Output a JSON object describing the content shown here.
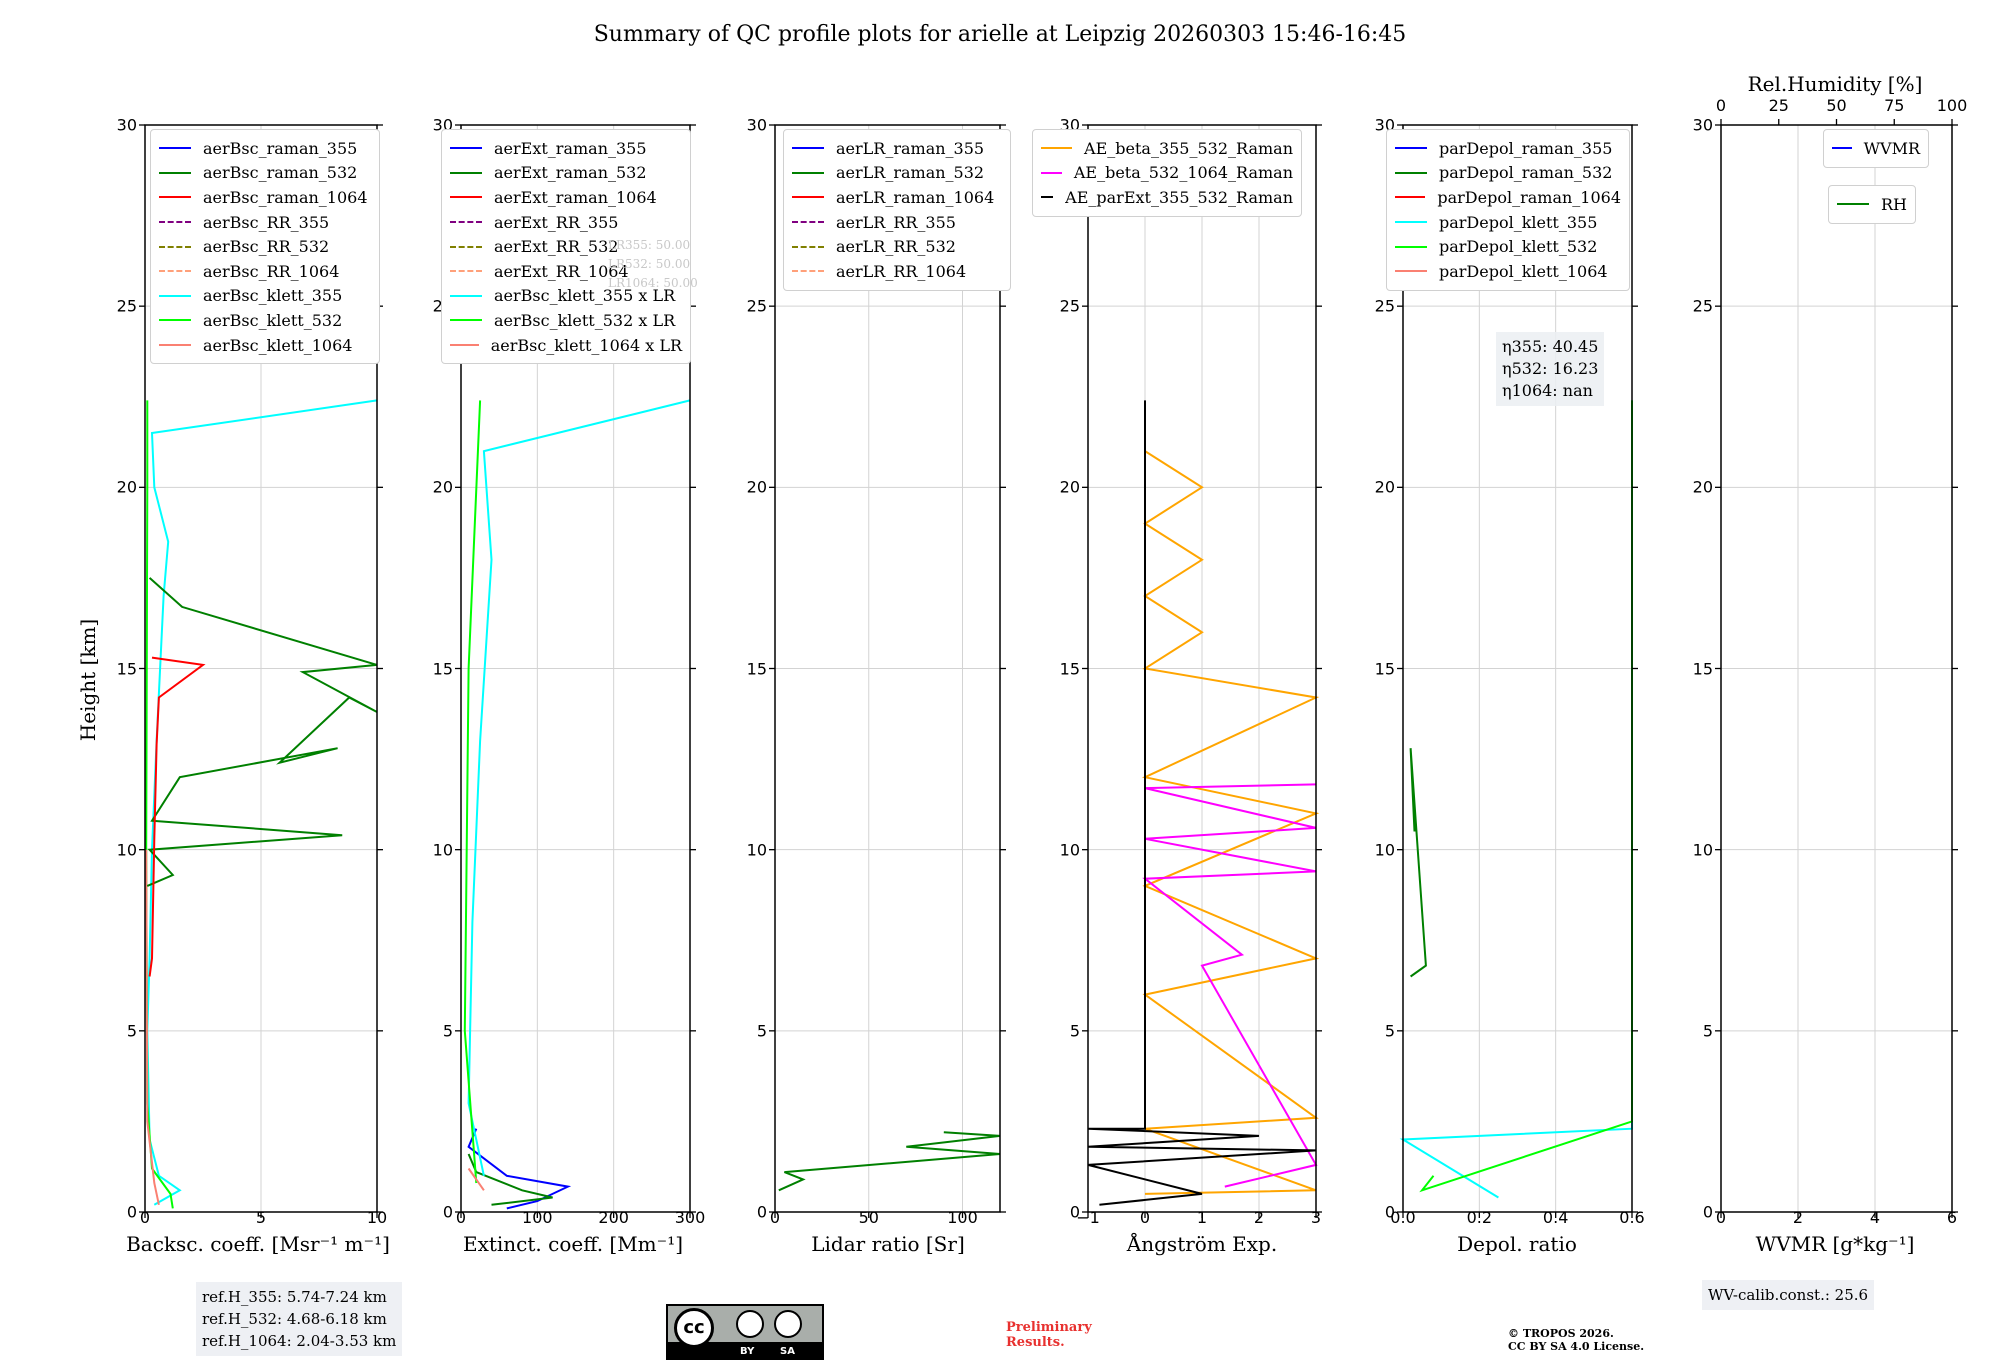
{
  "figure": {
    "title": "Summary of QC profile plots for arielle at Leipzig 20260303 15:46-16:45",
    "ylabel": "Height [km]",
    "y_ticks": [
      "0",
      "5",
      "10",
      "15",
      "20",
      "25",
      "30"
    ]
  },
  "chart_data": [
    {
      "type": "line",
      "panel": "backscatter",
      "xlabel": "Backsc. coeff. [Msr⁻¹ m⁻¹]",
      "xlim": [
        0,
        10
      ],
      "ylim": [
        0,
        30
      ],
      "x_ticks": [
        "0",
        "5",
        "10"
      ],
      "legend": [
        "aerBsc_raman_355",
        "aerBsc_raman_532",
        "aerBsc_raman_1064",
        "aerBsc_RR_355",
        "aerBsc_RR_532",
        "aerBsc_RR_1064",
        "aerBsc_klett_355",
        "aerBsc_klett_532",
        "aerBsc_klett_1064"
      ],
      "series": [
        {
          "name": "aerBsc_klett_355",
          "color": "#00ffff",
          "points": [
            [
              0.4,
              0.2
            ],
            [
              1.5,
              0.6
            ],
            [
              0.6,
              1.0
            ],
            [
              0.2,
              2
            ],
            [
              0.1,
              5
            ],
            [
              0.2,
              7
            ],
            [
              0.3,
              10
            ],
            [
              0.5,
              13
            ],
            [
              0.8,
              17
            ],
            [
              1.0,
              18.5
            ],
            [
              0.4,
              20
            ],
            [
              0.3,
              21.5
            ],
            [
              10,
              22.4
            ]
          ]
        },
        {
          "name": "aerBsc_klett_532",
          "color": "#00ff00",
          "points": [
            [
              1.2,
              0.1
            ],
            [
              1.1,
              0.5
            ],
            [
              0.3,
              1.2
            ],
            [
              0.1,
              3
            ],
            [
              0.05,
              10
            ],
            [
              0.1,
              20
            ],
            [
              0.1,
              22.4
            ]
          ]
        },
        {
          "name": "aerBsc_klett_1064",
          "color": "#fa8072",
          "points": [
            [
              0.6,
              0.2
            ],
            [
              0.4,
              0.8
            ],
            [
              0.1,
              2.5
            ],
            [
              0.05,
              10
            ]
          ]
        },
        {
          "name": "aerBsc_raman_532",
          "color": "#008000",
          "points": [
            [
              0.1,
              9
            ],
            [
              1.2,
              9.3
            ],
            [
              0.2,
              10
            ],
            [
              8.5,
              10.4
            ],
            [
              0.3,
              10.8
            ],
            [
              1.5,
              12
            ],
            [
              8.3,
              12.8
            ],
            [
              5.8,
              12.4
            ],
            [
              8.8,
              14.2
            ],
            [
              10,
              13.8
            ],
            [
              6.8,
              14.9
            ],
            [
              10,
              15.1
            ],
            [
              1.6,
              16.7
            ],
            [
              0.2,
              17.5
            ]
          ]
        },
        {
          "name": "aerBsc_raman_1064",
          "color": "#ff0000",
          "points": [
            [
              0.2,
              6.5
            ],
            [
              0.3,
              7
            ],
            [
              0.4,
              10.3
            ],
            [
              0.5,
              12.9
            ],
            [
              0.6,
              14.2
            ],
            [
              2.5,
              15.1
            ],
            [
              0.3,
              15.3
            ]
          ]
        }
      ],
      "info_box": [
        "ref.H_355: 5.74-7.24 km",
        "ref.H_532: 4.68-6.18 km",
        "ref.H_1064: 2.04-3.53 km"
      ]
    },
    {
      "type": "line",
      "panel": "extinction",
      "xlabel": "Extinct. coeff. [Mm⁻¹]",
      "xlim": [
        0,
        300
      ],
      "ylim": [
        0,
        30
      ],
      "x_ticks": [
        "0",
        "100",
        "200",
        "300"
      ],
      "legend": [
        "aerExt_raman_355",
        "aerExt_raman_532",
        "aerExt_raman_1064",
        "aerExt_RR_355",
        "aerExt_RR_532",
        "aerExt_RR_1064",
        "aerBsc_klett_355 x LR",
        "aerBsc_klett_532 x LR",
        "aerBsc_klett_1064 x LR"
      ],
      "series": [
        {
          "name": "aerExt_raman_355",
          "color": "#0000ff",
          "points": [
            [
              20,
              2.3
            ],
            [
              10,
              1.8
            ],
            [
              60,
              1.0
            ],
            [
              140,
              0.7
            ],
            [
              100,
              0.3
            ],
            [
              60,
              0.1
            ]
          ]
        },
        {
          "name": "aerExt_raman_532",
          "color": "#008000",
          "points": [
            [
              10,
              1.6
            ],
            [
              20,
              1.1
            ],
            [
              80,
              0.6
            ],
            [
              120,
              0.4
            ],
            [
              40,
              0.2
            ]
          ]
        },
        {
          "name": "aerBsc_klett_355 x LR",
          "color": "#00ffff",
          "points": [
            [
              30,
              1
            ],
            [
              10,
              3
            ],
            [
              15,
              8
            ],
            [
              25,
              13
            ],
            [
              40,
              18
            ],
            [
              30,
              21
            ],
            [
              300,
              22.4
            ]
          ]
        },
        {
          "name": "aerBsc_klett_532 x LR",
          "color": "#00ff00",
          "points": [
            [
              20,
              0.8
            ],
            [
              5,
              5
            ],
            [
              10,
              15
            ],
            [
              25,
              22.4
            ]
          ]
        },
        {
          "name": "aerBsc_klett_1064 x LR",
          "color": "#fa8072",
          "points": [
            [
              30,
              0.6
            ],
            [
              10,
              1.2
            ]
          ]
        }
      ],
      "lr_labels": [
        "LR355: 50.00",
        "LR532: 50.00",
        "LR1064: 50.00"
      ]
    },
    {
      "type": "line",
      "panel": "lidar_ratio",
      "xlabel": "Lidar ratio [Sr]",
      "xlim": [
        0,
        120
      ],
      "ylim": [
        0,
        30
      ],
      "x_ticks": [
        "0",
        "50",
        "100"
      ],
      "legend": [
        "aerLR_raman_355",
        "aerLR_raman_532",
        "aerLR_raman_1064",
        "aerLR_RR_355",
        "aerLR_RR_532",
        "aerLR_RR_1064"
      ],
      "series": [
        {
          "name": "aerLR_raman_532",
          "color": "#008000",
          "points": [
            [
              2,
              0.6
            ],
            [
              15,
              0.9
            ],
            [
              5,
              1.1
            ],
            [
              120,
              1.6
            ],
            [
              70,
              1.8
            ],
            [
              120,
              2.1
            ],
            [
              90,
              2.2
            ]
          ]
        }
      ]
    },
    {
      "type": "line",
      "panel": "angstrom",
      "xlabel": "Ångström Exp.",
      "xlim": [
        -1,
        3
      ],
      "ylim": [
        0,
        30
      ],
      "x_ticks": [
        "−1",
        "0",
        "1",
        "2",
        "3"
      ],
      "legend": [
        "AE_beta_355_532_Raman",
        "AE_beta_532_1064_Raman",
        "AE_parExt_355_532_Raman"
      ],
      "series": [
        {
          "name": "AE_beta_355_532_Raman",
          "color": "#ffa500",
          "points": [
            [
              0,
              0.5
            ],
            [
              3,
              0.6
            ],
            [
              0,
              2.3
            ],
            [
              3,
              2.6
            ],
            [
              0,
              6
            ],
            [
              3,
              7
            ],
            [
              0,
              9
            ],
            [
              3,
              11
            ],
            [
              0,
              12
            ],
            [
              3,
              14.2
            ],
            [
              0,
              15
            ],
            [
              1,
              16
            ],
            [
              0,
              17
            ],
            [
              1,
              18
            ],
            [
              0,
              19
            ],
            [
              1,
              20
            ],
            [
              0,
              21
            ]
          ]
        },
        {
          "name": "AE_beta_532_1064_Raman",
          "color": "#ff00ff",
          "points": [
            [
              1.4,
              0.7
            ],
            [
              3,
              1.3
            ],
            [
              1,
              6.8
            ],
            [
              1.7,
              7.1
            ],
            [
              0,
              9.2
            ],
            [
              3,
              9.4
            ],
            [
              0,
              10.3
            ],
            [
              3,
              10.6
            ],
            [
              0,
              11.7
            ],
            [
              3,
              11.8
            ]
          ]
        },
        {
          "name": "AE_parExt_355_532_Raman",
          "color": "#000000",
          "points": [
            [
              0,
              22.4
            ],
            [
              0,
              2.3
            ],
            [
              -1,
              2.3
            ],
            [
              2,
              2.1
            ],
            [
              -1,
              1.8
            ],
            [
              3,
              1.7
            ],
            [
              -1,
              1.3
            ],
            [
              1,
              0.5
            ],
            [
              -0.8,
              0.2
            ]
          ]
        }
      ]
    },
    {
      "type": "line",
      "panel": "depolarization",
      "xlabel": "Depol. ratio",
      "xlim": [
        0,
        0.6
      ],
      "ylim": [
        0,
        30
      ],
      "x_ticks": [
        "0.0",
        "0.2",
        "0.4",
        "0.6"
      ],
      "legend": [
        "parDepol_raman_355",
        "parDepol_raman_532",
        "parDepol_raman_1064",
        "parDepol_klett_355",
        "parDepol_klett_532",
        "parDepol_klett_1064"
      ],
      "series": [
        {
          "name": "parDepol_klett_355",
          "color": "#00ffff",
          "points": [
            [
              0.25,
              0.4
            ],
            [
              0.0,
              2.0
            ],
            [
              0.6,
              2.3
            ],
            [
              0.6,
              22.4
            ]
          ]
        },
        {
          "name": "parDepol_klett_532",
          "color": "#00ff00",
          "points": [
            [
              0.08,
              1.0
            ],
            [
              0.05,
              0.6
            ],
            [
              0.6,
              2.5
            ],
            [
              0.6,
              22.4
            ]
          ]
        },
        {
          "name": "parDepol_raman_532",
          "color": "#008000",
          "points": [
            [
              0.02,
              6.5
            ],
            [
              0.06,
              6.8
            ],
            [
              0.02,
              12.8
            ],
            [
              0.03,
              10.5
            ]
          ]
        }
      ],
      "eta": [
        "η355: 40.45",
        "η532: 16.23",
        "η1064: nan"
      ]
    },
    {
      "type": "line",
      "panel": "wvmr",
      "xlabel": "WVMR [g*kg⁻¹]",
      "xlim": [
        0,
        6
      ],
      "ylim": [
        0,
        30
      ],
      "x_ticks": [
        "0",
        "2",
        "4",
        "6"
      ],
      "top_label": "Rel.Humidity [%]",
      "top_ticks": [
        "0",
        "25",
        "50",
        "75",
        "100"
      ],
      "legend": [
        "WVMR",
        "RH"
      ],
      "series": [],
      "info_box": [
        "WV-calib.const.: 25.6"
      ]
    }
  ],
  "footer": {
    "cc_text": [
      "BY",
      "SA"
    ],
    "preliminary": [
      "Preliminary",
      "Results."
    ],
    "copyright": [
      "© TROPOS 2026.",
      "CC BY SA 4.0 License."
    ]
  },
  "colors": {
    "raman_355": "#0000ff",
    "raman_532": "#008000",
    "raman_1064": "#ff0000",
    "rr_355": "#800080",
    "rr_532": "#808000",
    "rr_1064": "#ffa07a",
    "klett_355": "#00ffff",
    "klett_532": "#00ff00",
    "klett_1064": "#fa8072",
    "ae1": "#ffa500",
    "ae2": "#ff00ff",
    "ae3": "#000000"
  }
}
